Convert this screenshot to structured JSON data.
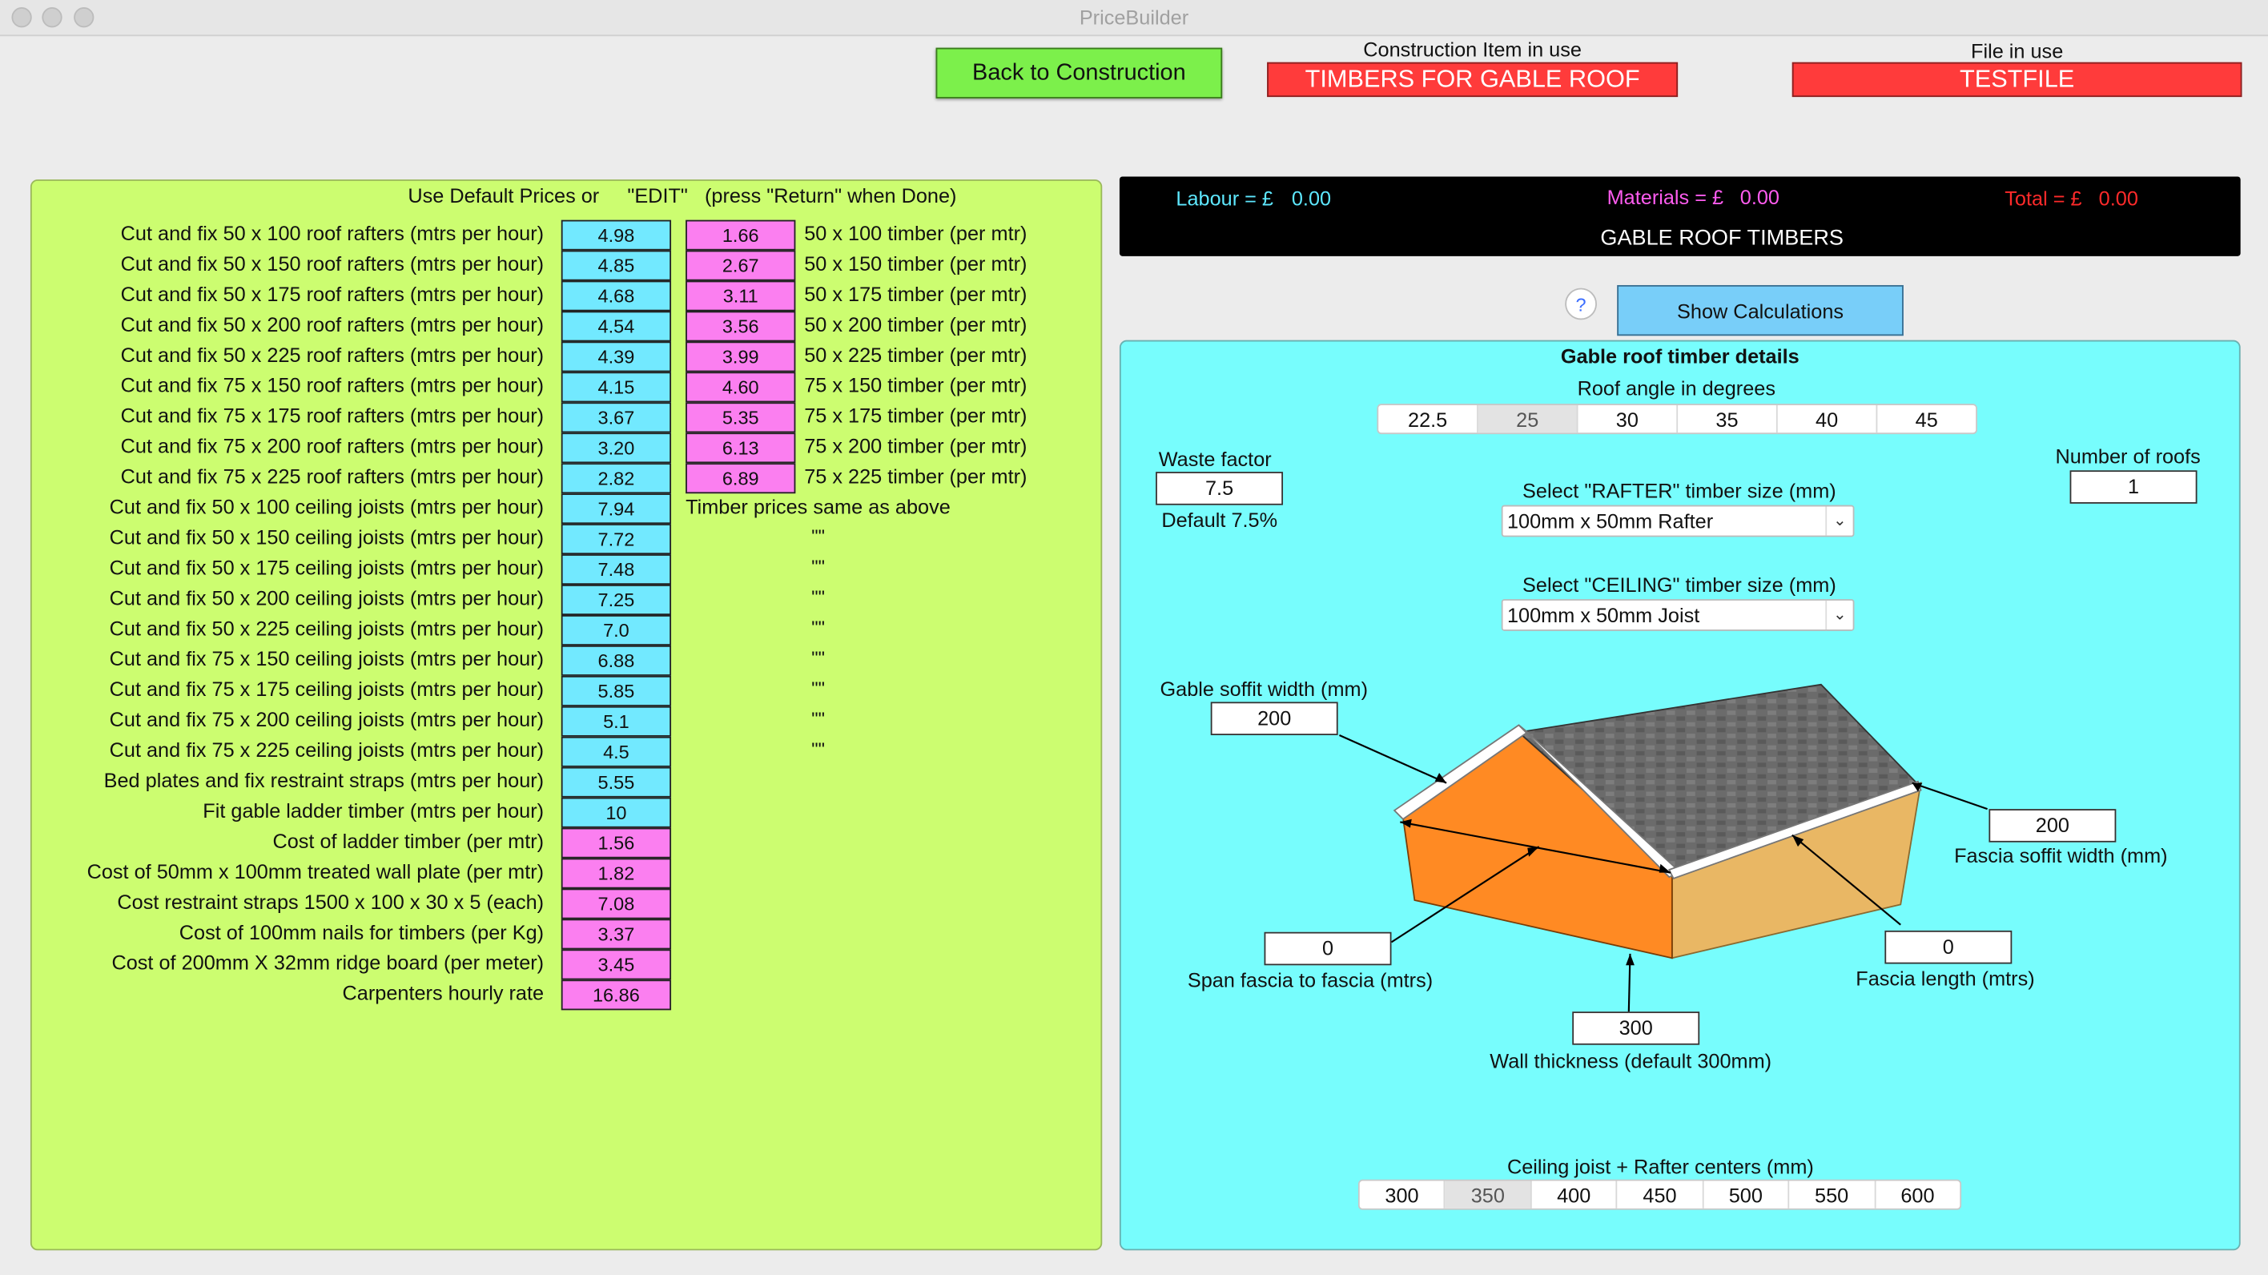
{
  "window": {
    "title": "PriceBuilder"
  },
  "header": {
    "back_button": "Back to Construction",
    "construction_caption": "Construction Item in use",
    "construction_value": "TIMBERS FOR GABLE ROOF",
    "file_caption": "File in use",
    "file_value": "TESTFILE"
  },
  "left": {
    "header": "Use Default Prices or     \"EDIT\"   (press \"Return\" when Done)",
    "rows": [
      {
        "label": "Cut and fix 50 x 100 roof rafters (mtrs per hour)",
        "rate": "4.98",
        "price": "1.66",
        "timber": "50 x 100 timber (per mtr)"
      },
      {
        "label": "Cut and fix 50 x 150 roof rafters (mtrs per hour)",
        "rate": "4.85",
        "price": "2.67",
        "timber": "50 x 150 timber (per mtr)"
      },
      {
        "label": "Cut and fix 50 x 175 roof rafters (mtrs per hour)",
        "rate": "4.68",
        "price": "3.11",
        "timber": "50 x 175 timber (per mtr)"
      },
      {
        "label": "Cut and fix 50 x 200 roof rafters (mtrs per hour)",
        "rate": "4.54",
        "price": "3.56",
        "timber": "50 x 200 timber (per mtr)"
      },
      {
        "label": "Cut and fix 50 x 225 roof rafters (mtrs per hour)",
        "rate": "4.39",
        "price": "3.99",
        "timber": "50 x 225 timber (per mtr)"
      },
      {
        "label": "Cut and fix 75 x 150 roof rafters (mtrs per hour)",
        "rate": "4.15",
        "price": "4.60",
        "timber": "75 x 150 timber (per mtr)"
      },
      {
        "label": "Cut and fix 75 x 175 roof rafters (mtrs per hour)",
        "rate": "3.67",
        "price": "5.35",
        "timber": "75 x 175 timber (per mtr)"
      },
      {
        "label": "Cut and fix 75 x 200 roof rafters (mtrs per hour)",
        "rate": "3.20",
        "price": "6.13",
        "timber": "75 x 200 timber (per mtr)"
      },
      {
        "label": "Cut and fix 75 x 225 roof rafters (mtrs per hour)",
        "rate": "2.82",
        "price": "6.89",
        "timber": "75 x 225 timber (per mtr)"
      },
      {
        "label": "Cut and fix 50 x 100 ceiling joists (mtrs per hour)",
        "rate": "7.94",
        "note": "Timber prices same as above"
      },
      {
        "label": "Cut and fix 50 x 150 ceiling joists (mtrs per hour)",
        "rate": "7.72",
        "note": "\"\""
      },
      {
        "label": "Cut and fix 50 x 175 ceiling joists (mtrs per hour)",
        "rate": "7.48",
        "note": "\"\""
      },
      {
        "label": "Cut and fix 50 x 200 ceiling joists (mtrs per hour)",
        "rate": "7.25",
        "note": "\"\""
      },
      {
        "label": "Cut and fix 50 x 225 ceiling joists (mtrs per hour)",
        "rate": "7.0",
        "note": "\"\""
      },
      {
        "label": "Cut and fix 75 x 150 ceiling joists (mtrs per hour)",
        "rate": "6.88",
        "note": "\"\""
      },
      {
        "label": "Cut and fix 75 x 175 ceiling joists (mtrs per hour)",
        "rate": "5.85",
        "note": "\"\""
      },
      {
        "label": "Cut and fix 75 x 200 ceiling joists (mtrs per hour)",
        "rate": "5.1",
        "note": "\"\""
      },
      {
        "label": "Cut and fix 75 x 225 ceiling joists (mtrs per hour)",
        "rate": "4.5",
        "note": "\"\""
      },
      {
        "label": "Bed plates and fix restraint straps (mtrs per hour)",
        "rate": "5.55"
      },
      {
        "label": "Fit gable ladder timber (mtrs per hour)",
        "rate": "10"
      },
      {
        "label": "Cost of ladder timber (per mtr)",
        "rate": "1.56",
        "pink": true
      },
      {
        "label": "Cost of 50mm x 100mm treated wall plate (per mtr)",
        "rate": "1.82",
        "pink": true
      },
      {
        "label": "Cost restraint straps 1500 x 100 x 30 x 5 (each)",
        "rate": "7.08",
        "pink": true
      },
      {
        "label": "Cost of 100mm nails for timbers (per Kg)",
        "rate": "3.37",
        "pink": true
      },
      {
        "label": "Cost of 200mm X 32mm ridge board (per meter)",
        "rate": "3.45",
        "pink": true
      },
      {
        "label": "Carpenters hourly rate",
        "rate": "16.86",
        "pink": true
      }
    ]
  },
  "summary": {
    "labour_label": "Labour = £",
    "labour_value": "0.00",
    "materials_label": "Materials = £",
    "materials_value": "0.00",
    "total_label": "Total = £",
    "total_value": "0.00",
    "title": "GABLE ROOF TIMBERS",
    "colors": {
      "labour": "#5ee8ff",
      "materials": "#ff5cf0",
      "total": "#ff2a2a"
    }
  },
  "actions": {
    "help": "?",
    "show_calculations": "Show Calculations"
  },
  "details": {
    "title": "Gable roof timber details",
    "roof_angle_label": "Roof angle in degrees",
    "roof_angles": [
      "22.5",
      "25",
      "30",
      "35",
      "40",
      "45"
    ],
    "roof_angle_selected": "25",
    "waste_label": "Waste factor",
    "waste_value": "7.5",
    "waste_default": "Default 7.5%",
    "roofs_label": "Number of roofs",
    "roofs_value": "1",
    "rafter_label": "Select \"RAFTER\" timber size (mm)",
    "rafter_value": "100mm x 50mm Rafter",
    "ceiling_label": "Select \"CEILING\" timber size (mm)",
    "ceiling_value": "100mm x 50mm Joist",
    "gable_soffit_label": "Gable soffit width (mm)",
    "gable_soffit_value": "200",
    "fascia_soffit_label": "Fascia soffit width (mm)",
    "fascia_soffit_value": "200",
    "span_label": "Span fascia to fascia (mtrs)",
    "span_value": "0",
    "fascia_length_label": "Fascia length (mtrs)",
    "fascia_length_value": "0",
    "wall_label": "Wall thickness (default 300mm)",
    "wall_value": "300",
    "centers_label": "Ceiling joist + Rafter centers (mm)",
    "centers": [
      "300",
      "350",
      "400",
      "450",
      "500",
      "550",
      "600"
    ],
    "centers_selected": "350"
  }
}
